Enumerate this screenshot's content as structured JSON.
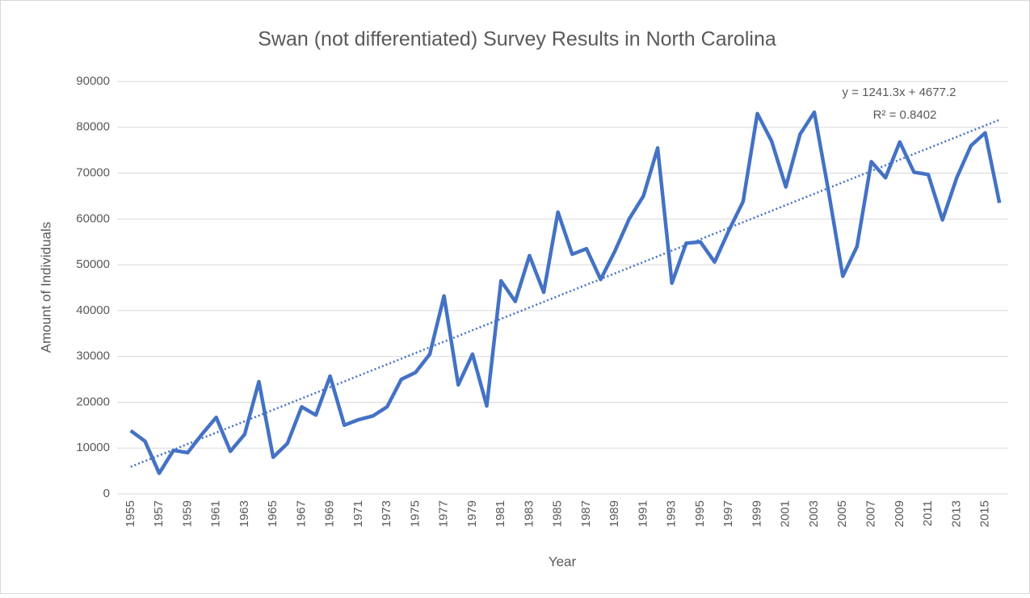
{
  "chart_data": {
    "type": "line",
    "title": "Swan (not differentiated) Survey Results in North Carolina",
    "x_label": "Year",
    "y_label": "Amount of Individuals",
    "categories": [
      "1955",
      null,
      "1957",
      null,
      "1959",
      null,
      "1961",
      null,
      "1963",
      null,
      "1965",
      null,
      "1967",
      null,
      "1969",
      null,
      "1971",
      null,
      "1973",
      null,
      "1975",
      null,
      "1977",
      null,
      "1979",
      null,
      "1981",
      null,
      "1983",
      null,
      "1985",
      null,
      "1987",
      null,
      "1989",
      null,
      "1991",
      null,
      "1993",
      null,
      "1995",
      null,
      "1997",
      null,
      "1999",
      null,
      "2001",
      null,
      "2003",
      null,
      "2005",
      null,
      "2007",
      null,
      "2009",
      null,
      "2011",
      null,
      "2013",
      null,
      "2015",
      null
    ],
    "series": [
      {
        "name": "Swan",
        "color": "#4472c4",
        "values": [
          13800,
          11500,
          4500,
          9500,
          9000,
          13000,
          16700,
          9300,
          13000,
          24500,
          8000,
          11000,
          19000,
          17200,
          25700,
          15000,
          16200,
          17000,
          19000,
          25000,
          26500,
          30500,
          43200,
          23800,
          30500,
          19200,
          46500,
          42000,
          52000,
          44000,
          61500,
          52300,
          53500,
          46800,
          53000,
          60000,
          65000,
          75500,
          46000,
          54700,
          55000,
          50600,
          57500,
          63800,
          83000,
          77000,
          67000,
          78500,
          83300,
          66000,
          47500,
          54000,
          72500,
          69000,
          76800,
          70200,
          69700,
          59800,
          69000,
          76000,
          78800,
          63500
        ]
      }
    ],
    "trendline": {
      "equation": "y = 1241.3x + 4677.2",
      "r_squared": "R² = 0.8402",
      "slope": 1241.3,
      "intercept": 4677.2,
      "color": "#4472c4"
    },
    "ylim": [
      0,
      90000
    ],
    "yticks": [
      0,
      10000,
      20000,
      30000,
      40000,
      50000,
      60000,
      70000,
      80000,
      90000
    ],
    "grid": true
  }
}
